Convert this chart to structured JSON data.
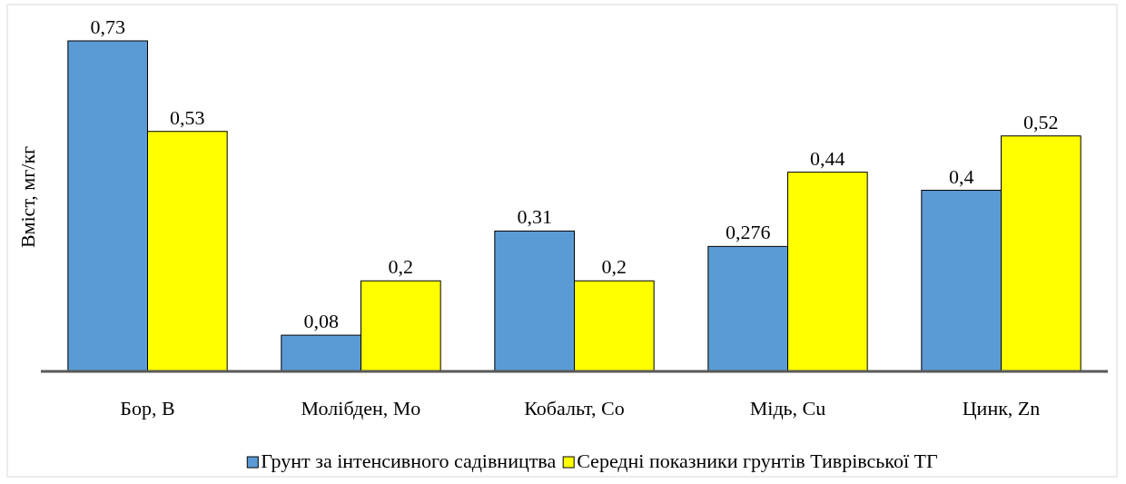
{
  "chart_data": {
    "type": "bar",
    "ylabel": "Вміст, мг/кг",
    "categories": [
      "Бор, B",
      "Молібден, Mo",
      "Кобальт, Co",
      "Мідь, Cu",
      "Цинк, Zn"
    ],
    "series": [
      {
        "name": "Грунт за інтенсивного садівництва",
        "color": "#5b9bd5",
        "values": [
          0.73,
          0.08,
          0.31,
          0.276,
          0.4
        ],
        "value_labels": [
          "0,73",
          "0,08",
          "0,31",
          "0,276",
          "0,4"
        ]
      },
      {
        "name": "Середні показники грунтів Тиврівської ТГ",
        "color": "#ffff00",
        "values": [
          0.53,
          0.2,
          0.2,
          0.44,
          0.52
        ],
        "value_labels": [
          "0,53",
          "0,2",
          "0,2",
          "0,44",
          "0,52"
        ]
      }
    ],
    "legend": "bottom"
  }
}
